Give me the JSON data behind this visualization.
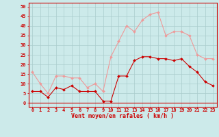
{
  "hours": [
    0,
    1,
    2,
    3,
    4,
    5,
    6,
    7,
    8,
    9,
    10,
    11,
    12,
    13,
    14,
    15,
    16,
    17,
    18,
    19,
    20,
    21,
    22,
    23
  ],
  "wind_avg": [
    6,
    6,
    3,
    8,
    7,
    9,
    6,
    6,
    6,
    1,
    1,
    14,
    14,
    22,
    24,
    24,
    23,
    23,
    22,
    23,
    19,
    16,
    11,
    9
  ],
  "wind_gust": [
    16,
    10,
    5,
    14,
    14,
    13,
    13,
    8,
    10,
    6,
    24,
    32,
    40,
    37,
    43,
    46,
    47,
    35,
    37,
    37,
    35,
    25,
    23,
    23
  ],
  "bg_color": "#cceaea",
  "grid_color": "#aacccc",
  "avg_color": "#cc0000",
  "gust_color": "#ee9999",
  "xlabel": "Vent moyen/en rafales ( km/h )",
  "yticks": [
    0,
    5,
    10,
    15,
    20,
    25,
    30,
    35,
    40,
    45,
    50
  ],
  "ylim": [
    -2,
    52
  ],
  "xlim": [
    -0.5,
    23.5
  ],
  "title_fontsize": 5,
  "tick_fontsize": 5,
  "xlabel_fontsize": 6,
  "linewidth": 0.8,
  "markersize": 2.0
}
